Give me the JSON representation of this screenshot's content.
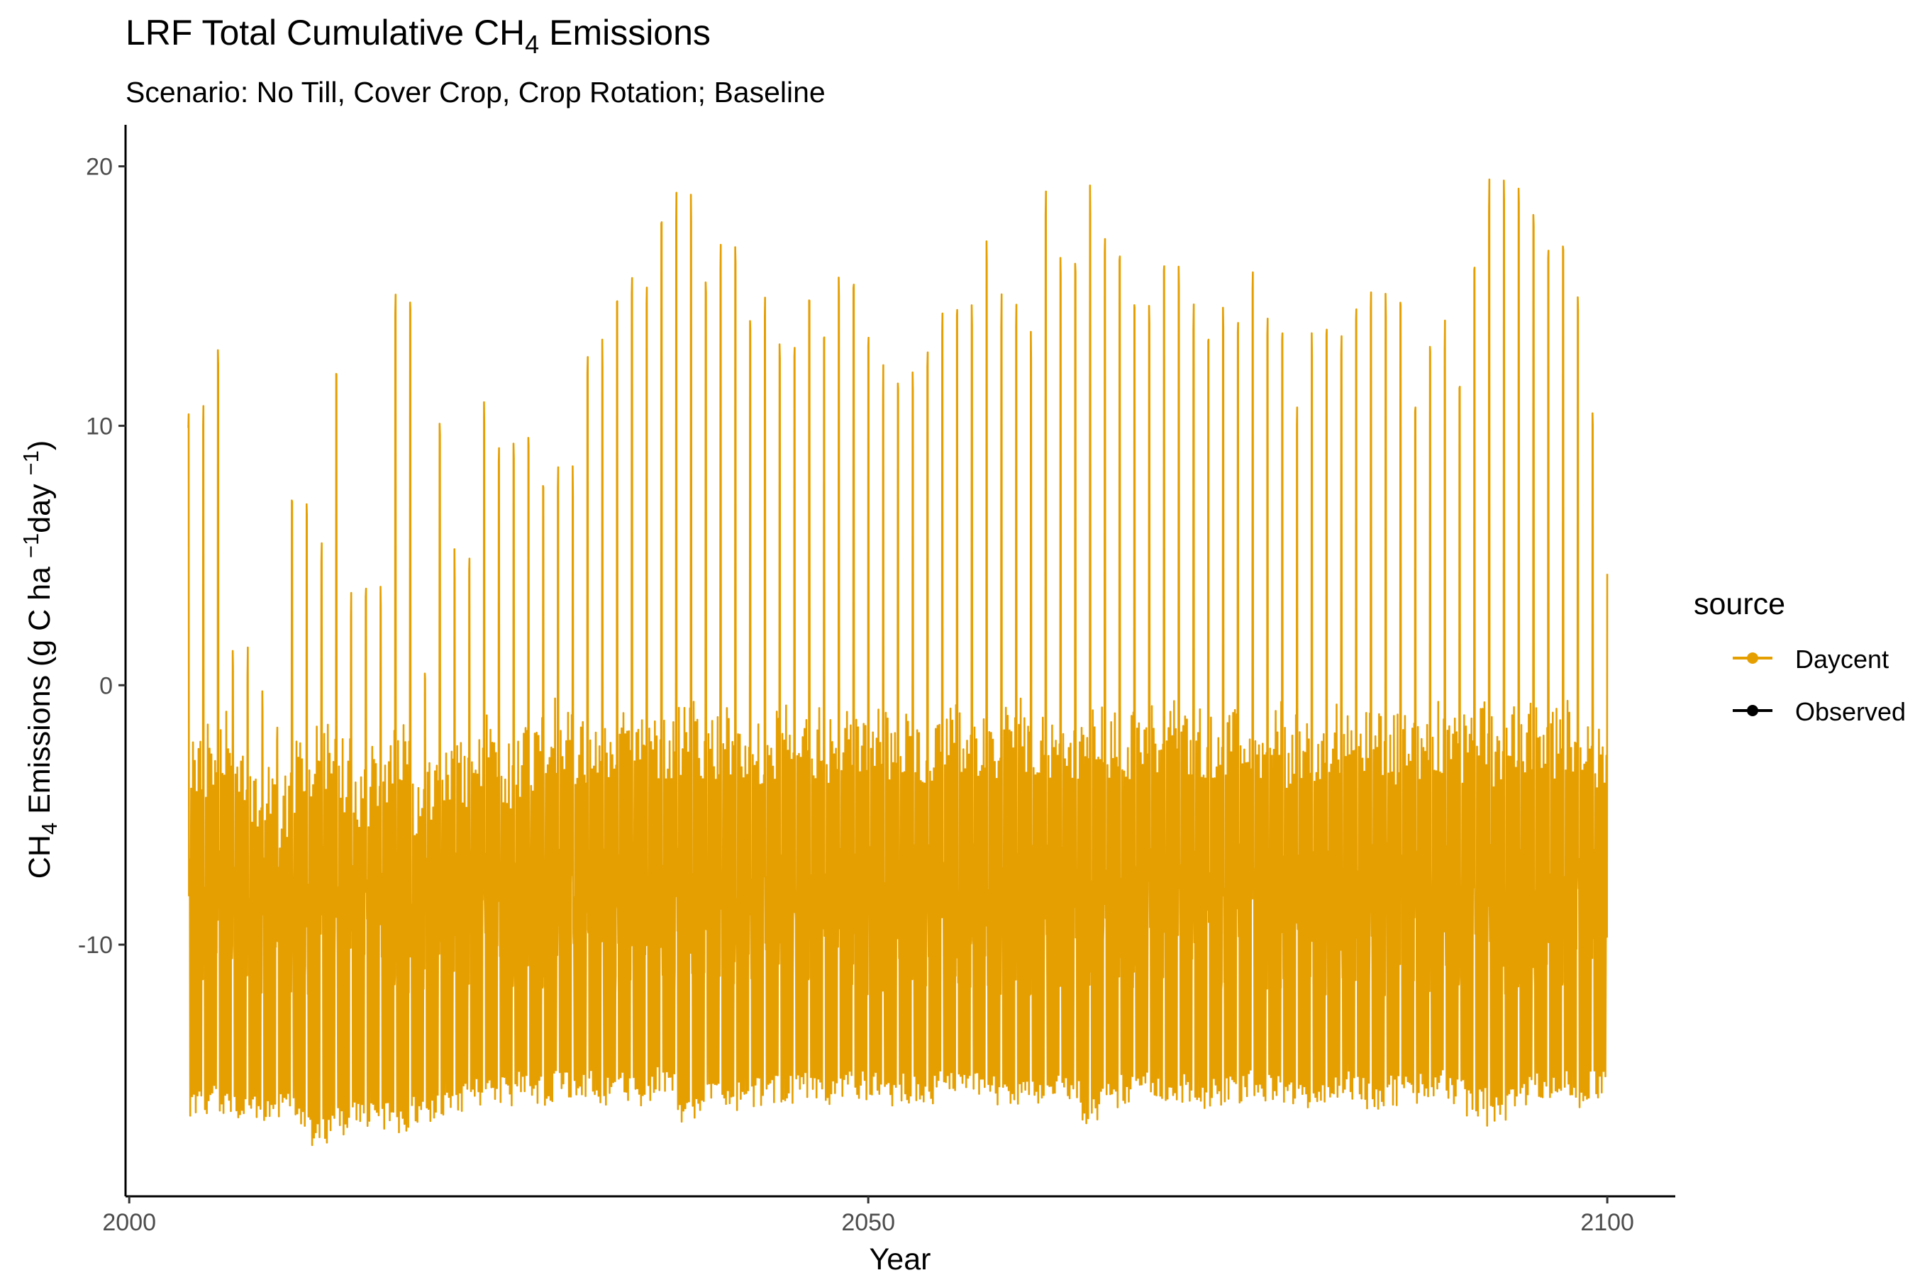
{
  "chart_data": {
    "type": "line",
    "title": {
      "pre": "LRF Total Cumulative CH",
      "sub": "4",
      "post": " Emissions"
    },
    "subtitle": "Scenario: No Till, Cover Crop, Crop Rotation; Baseline",
    "xlabel": "Year",
    "ylabel": {
      "pre": "CH",
      "sub": "4",
      "mid1": " Emissions (g C ha ",
      "sup1": "−1",
      "mid2": "day ",
      "sup2": "−1",
      "post": ")"
    },
    "xlim": [
      1999.75,
      2104.6
    ],
    "ylim": [
      -19.7,
      21.6
    ],
    "xticks": [
      2000,
      2050,
      2100
    ],
    "xtick_labels": [
      "2000",
      "2050",
      "2100"
    ],
    "yticks": [
      -10,
      0,
      10,
      20
    ],
    "ytick_labels": [
      "-10",
      "0",
      "10",
      "20"
    ],
    "grid": false,
    "legend": {
      "title": "source",
      "position": "right"
    },
    "series": [
      {
        "name": "Daycent",
        "color": "#E69F00",
        "x_start": 2004,
        "x_end": 2100,
        "yearly_peak": [
          10.9,
          13.2,
          1.5,
          0.2,
          -1.0,
          7.3,
          6.2,
          13.2,
          3.9,
          4.0,
          15.5,
          1.3,
          10.3,
          5.3,
          11.0,
          9.8,
          10.2,
          7.8,
          8.5,
          13.3,
          13.5,
          15.8,
          15.9,
          18.0,
          19.0,
          16.5,
          17.0,
          14.8,
          15.0,
          14.0,
          15.2,
          13.8,
          15.8,
          14.2,
          12.5,
          12.7,
          13.5,
          14.8,
          14.8,
          17.3,
          15.2,
          13.8,
          19.1,
          16.5,
          19.5,
          17.8,
          14.8,
          15.0,
          16.7,
          14.8,
          13.5,
          15.0,
          16.7,
          14.5,
          11.5,
          14.2,
          13.8,
          15.3,
          15.3,
          15.4,
          11.7,
          14.1,
          11.8,
          17.5,
          19.6,
          19.8,
          18.4,
          17.7,
          15.6,
          11.3,
          5.3
        ],
        "yearly_min": [
          -16.8,
          -16.5,
          -16.8,
          -17.0,
          -16.9,
          -17.0,
          -17.8,
          -17.4,
          -17.0,
          -17.2,
          -17.5,
          -16.9,
          -16.8,
          -16.5,
          -16.3,
          -16.2,
          -16.0,
          -16.2,
          -15.9,
          -16.0,
          -16.3,
          -16.1,
          -16.2,
          -15.8,
          -17.2,
          -16.5,
          -16.2,
          -16.4,
          -16.2,
          -16.1,
          -16.0,
          -16.2,
          -15.9,
          -16.0,
          -16.3,
          -16.1,
          -16.2,
          -16.0,
          -16.1,
          -16.2,
          -16.3,
          -16.4,
          -16.2,
          -16.0,
          -17.1,
          -16.3,
          -16.1,
          -16.0,
          -16.2,
          -16.1,
          -16.3,
          -16.2,
          -16.0,
          -16.1,
          -16.2,
          -16.3,
          -16.1,
          -16.0,
          -16.4,
          -16.2,
          -16.1,
          -16.0,
          -16.2,
          -16.6,
          -17.0,
          -16.2,
          -16.1,
          -16.0,
          -16.3,
          -16.0,
          -15.8
        ],
        "yearly_base_max": [
          -1.5,
          -1.0,
          -2.0,
          -2.5,
          -3.5,
          -2.0,
          -1.5,
          -2.0,
          -2.5,
          -2.0,
          -1.5,
          -3.0,
          -2.5,
          -2.0,
          -1.0,
          -2.0,
          -1.5,
          -1.0,
          -0.5,
          -1.0,
          -1.5,
          -1.0,
          -0.5,
          -1.0,
          -0.5,
          -1.0,
          -0.8,
          -1.0,
          -1.2,
          -0.5,
          -1.0,
          -0.8,
          -1.0,
          -0.5,
          -0.8,
          -1.0,
          -0.8,
          -0.5,
          -0.8,
          -1.0,
          -0.7,
          -0.5,
          -0.8,
          -1.0,
          -0.5,
          -0.8,
          -1.0,
          -0.7,
          -0.5,
          -0.8,
          -1.0,
          -0.6,
          -0.8,
          -0.5,
          -1.0,
          -0.8,
          -0.6,
          -0.8,
          -0.5,
          -1.0,
          -0.8,
          -0.6,
          -0.8,
          -0.5,
          -1.0,
          -0.8,
          -0.6,
          -0.8,
          -0.5,
          -1.0,
          -0.8
        ]
      },
      {
        "name": "Observed",
        "color": "#000000",
        "values": []
      }
    ]
  }
}
